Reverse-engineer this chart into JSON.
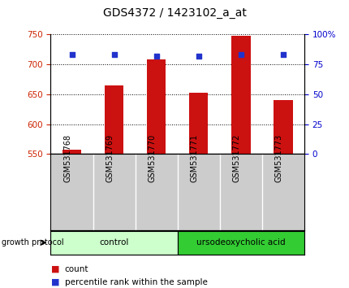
{
  "title": "GDS4372 / 1423102_a_at",
  "samples": [
    "GSM531768",
    "GSM531769",
    "GSM531770",
    "GSM531771",
    "GSM531772",
    "GSM531773"
  ],
  "count_values": [
    558,
    665,
    708,
    653,
    748,
    641
  ],
  "percentile_values": [
    83,
    83,
    82,
    82,
    83,
    83
  ],
  "ylim_left": [
    550,
    750
  ],
  "ylim_right": [
    0,
    100
  ],
  "yticks_left": [
    550,
    600,
    650,
    700,
    750
  ],
  "yticks_right": [
    0,
    25,
    50,
    75,
    100
  ],
  "bar_color": "#cc1111",
  "dot_color": "#2233cc",
  "bar_width": 0.45,
  "groups": [
    {
      "label": "control",
      "indices": [
        0,
        1,
        2
      ],
      "color": "#ccffcc"
    },
    {
      "label": "ursodeoxycholic acid",
      "indices": [
        3,
        4,
        5
      ],
      "color": "#33cc33"
    }
  ],
  "group_label_prefix": "growth protocol",
  "legend_count_label": "count",
  "legend_percentile_label": "percentile rank within the sample",
  "left_axis_color": "#cc2200",
  "right_axis_color": "#0000cc",
  "grid_color": "#000000",
  "plot_bg": "#ffffff",
  "label_area_color": "#cccccc",
  "title_fontsize": 10,
  "tick_fontsize": 7.5,
  "sample_fontsize": 7,
  "legend_fontsize": 7.5
}
